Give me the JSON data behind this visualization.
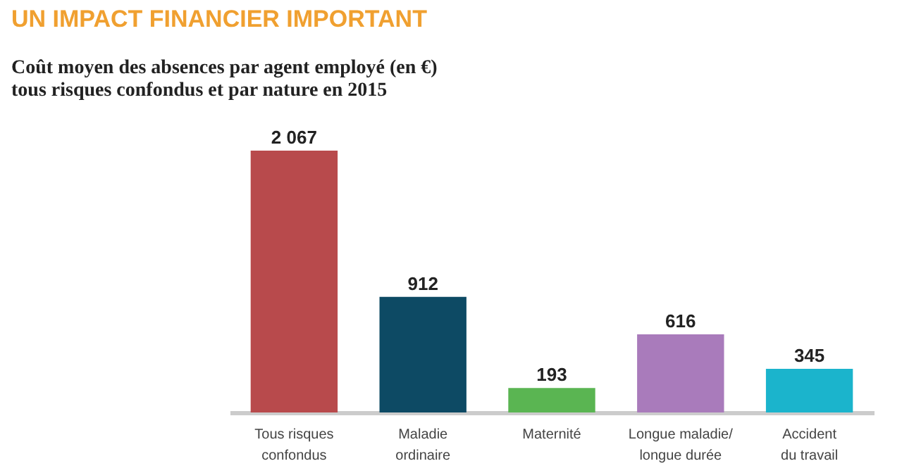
{
  "chart_data": {
    "type": "bar",
    "title": "UN IMPACT FINANCIER IMPORTANT",
    "subtitle": "Coût moyen des absences par agent employé (en €)\ntous risques confondus et par nature en 2015",
    "categories": [
      "Tous risques\nconfondus",
      "Maladie\nordinaire",
      "Maternité",
      "Longue maladie/\nlongue durée",
      "Accident\ndu travail"
    ],
    "values": [
      2067,
      912,
      193,
      616,
      345
    ],
    "colors": [
      "#b84a4c",
      "#0d4a64",
      "#5ab552",
      "#a97bbb",
      "#1bb4cc"
    ],
    "value_labels": [
      "2 067",
      "912",
      "193",
      "616",
      "345"
    ]
  }
}
